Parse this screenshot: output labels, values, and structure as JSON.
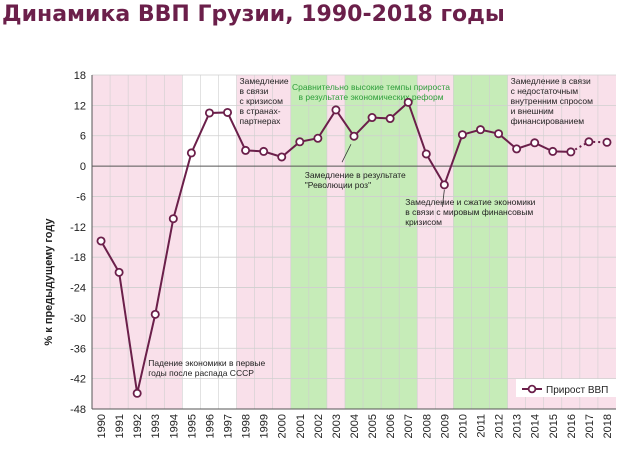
{
  "title": "Динамика ВВП Грузии, 1990-2018 годы",
  "colors": {
    "line": "#6b1f4a",
    "title": "#6b1f4a",
    "pink_band": "#f9e0ea",
    "green_band": "#c6ecb8",
    "grid": "#cfcfcf",
    "green_text": "#2e9e3a"
  },
  "chart_data": {
    "type": "line",
    "ylabel": "% к предыдущему году",
    "ylim": [
      -48,
      18
    ],
    "yticks": [
      18,
      12,
      6,
      0,
      -6,
      -12,
      -18,
      -24,
      -30,
      -36,
      -42,
      -48
    ],
    "x": [
      "1990",
      "1991",
      "1992",
      "1993",
      "1994",
      "1995",
      "1996",
      "1997",
      "1998",
      "1999",
      "2000",
      "2001",
      "2002",
      "2003",
      "2004",
      "2005",
      "2006",
      "2007",
      "2008",
      "2009",
      "2010",
      "2011",
      "2012",
      "2013",
      "2014",
      "2015",
      "2016",
      "2017",
      "2018"
    ],
    "series": [
      {
        "name": "Прирост ВВП",
        "values": [
          -14.8,
          -21,
          -44.9,
          -29.3,
          -10.4,
          2.6,
          10.5,
          10.6,
          3.1,
          2.9,
          1.8,
          4.8,
          5.5,
          11.1,
          5.9,
          9.6,
          9.4,
          12.6,
          2.4,
          -3.7,
          6.2,
          7.2,
          6.4,
          3.4,
          4.6,
          2.9,
          2.8,
          4.8,
          4.7
        ],
        "dotted_from": "2016"
      }
    ],
    "shaded_periods": [
      {
        "from": "1990",
        "to": "1994",
        "kind": "pink"
      },
      {
        "from": "1998",
        "to": "2000",
        "kind": "pink"
      },
      {
        "from": "2001",
        "to": "2003",
        "kind": "green"
      },
      {
        "from": "2003",
        "to": "2004",
        "kind": "pink"
      },
      {
        "from": "2004",
        "to": "2007",
        "kind": "green"
      },
      {
        "from": "2008",
        "to": "2009",
        "kind": "pink"
      },
      {
        "from": "2010",
        "to": "2012",
        "kind": "green"
      },
      {
        "from": "2013",
        "to": "2018",
        "kind": "pink"
      }
    ],
    "annotations": [
      {
        "id": "ann-1998",
        "color": "dark",
        "lines": [
          "Замедление",
          "в связи",
          "с кризисом",
          "в странах-",
          "партнерах"
        ]
      },
      {
        "id": "ann-reforms",
        "color": "green",
        "lines": [
          "Сравнительно высокие темпы прироста",
          "в результате экономических реформ"
        ]
      },
      {
        "id": "ann-2013",
        "color": "dark",
        "lines": [
          "Замедление в связи",
          "с недостаточным",
          "внутренним спросом",
          "и внешним",
          "финансированием"
        ]
      },
      {
        "id": "ann-rose",
        "color": "dark",
        "lines": [
          "Замедление в результате",
          "\"Революции роз\""
        ]
      },
      {
        "id": "ann-2008",
        "color": "dark",
        "lines": [
          "Замедление и сжатие экономики",
          "в связи с мировым финансовым",
          "кризисом"
        ]
      },
      {
        "id": "ann-1992",
        "color": "dark",
        "lines": [
          "Падение экономики в первые",
          "годы после распада СССР"
        ]
      }
    ],
    "legend": {
      "label": "Прирост ВВП",
      "position": "bottom-right"
    },
    "grid": true
  }
}
